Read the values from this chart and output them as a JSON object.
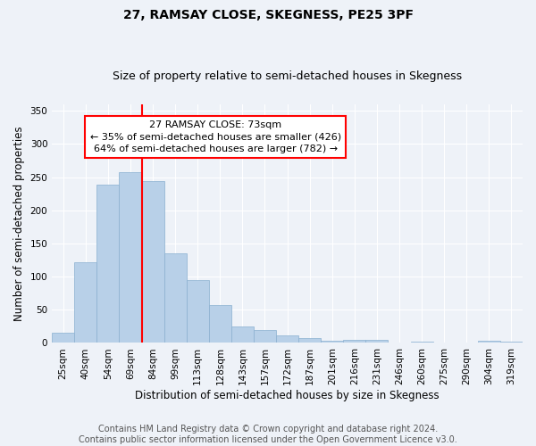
{
  "title": "27, RAMSAY CLOSE, SKEGNESS, PE25 3PF",
  "subtitle": "Size of property relative to semi-detached houses in Skegness",
  "xlabel": "Distribution of semi-detached houses by size in Skegness",
  "ylabel": "Number of semi-detached properties",
  "categories": [
    "25sqm",
    "40sqm",
    "54sqm",
    "69sqm",
    "84sqm",
    "99sqm",
    "113sqm",
    "128sqm",
    "143sqm",
    "157sqm",
    "172sqm",
    "187sqm",
    "201sqm",
    "216sqm",
    "231sqm",
    "246sqm",
    "260sqm",
    "275sqm",
    "290sqm",
    "304sqm",
    "319sqm"
  ],
  "values": [
    15,
    122,
    238,
    258,
    244,
    135,
    95,
    57,
    25,
    20,
    11,
    7,
    3,
    4,
    4,
    0,
    2,
    0,
    0,
    3,
    2
  ],
  "bar_color": "#b8d0e8",
  "bar_edgecolor": "#8ab0d0",
  "vline_bin_index": 3,
  "annotation_text": "27 RAMSAY CLOSE: 73sqm\n← 35% of semi-detached houses are smaller (426)\n64% of semi-detached houses are larger (782) →",
  "annotation_box_facecolor": "white",
  "annotation_box_edgecolor": "red",
  "vline_color": "red",
  "ylim": [
    0,
    360
  ],
  "yticks": [
    0,
    50,
    100,
    150,
    200,
    250,
    300,
    350
  ],
  "footer_line1": "Contains HM Land Registry data © Crown copyright and database right 2024.",
  "footer_line2": "Contains public sector information licensed under the Open Government Licence v3.0.",
  "background_color": "#eef2f8",
  "grid_color": "#ffffff",
  "title_fontsize": 10,
  "subtitle_fontsize": 9,
  "axis_label_fontsize": 8.5,
  "tick_fontsize": 7.5,
  "annotation_fontsize": 8,
  "footer_fontsize": 7
}
